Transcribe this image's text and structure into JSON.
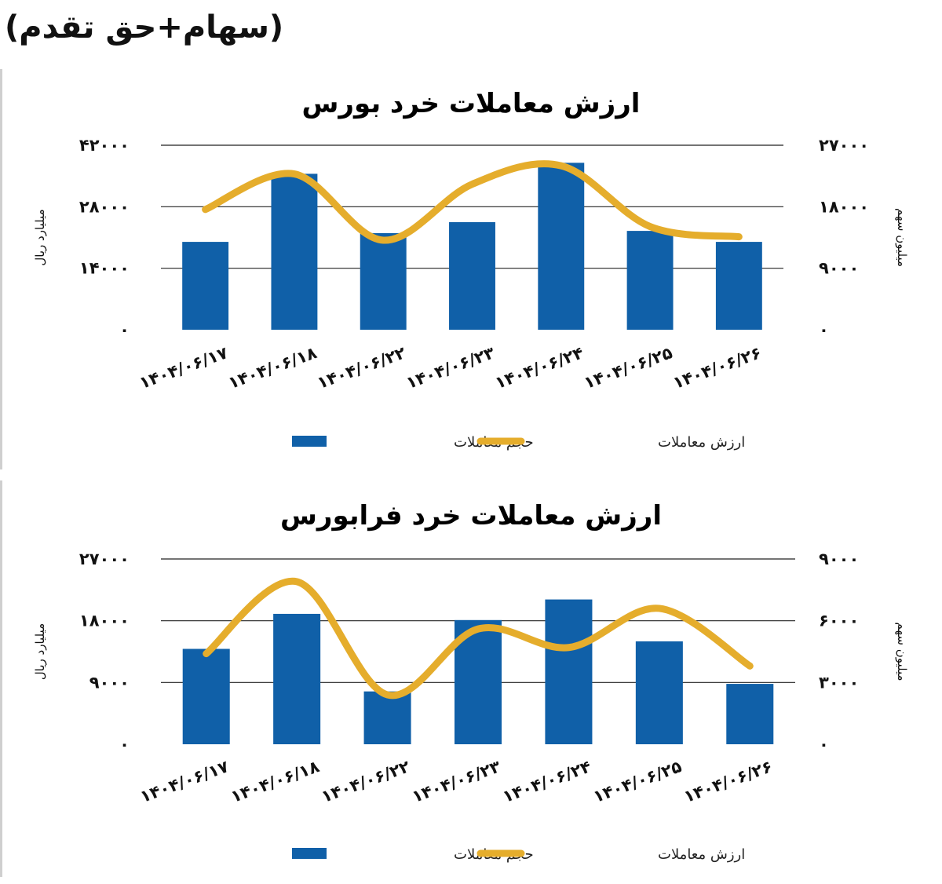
{
  "header": {
    "title": "(سهام+حق تقدم)"
  },
  "colors": {
    "bar": "#1060a8",
    "line": "#e5ad2c",
    "grid": "#222222"
  },
  "chart_data": [
    {
      "type": "bar",
      "title": "ارزش معاملات خرد بورس",
      "categories": [
        "۱۴۰۴/۰۶/۱۷",
        "۱۴۰۴/۰۶/۱۸",
        "۱۴۰۴/۰۶/۲۲",
        "۱۴۰۴/۰۶/۲۳",
        "۱۴۰۴/۰۶/۲۴",
        "۱۴۰۴/۰۶/۲۵",
        "۱۴۰۴/۰۶/۲۶"
      ],
      "left_axis": {
        "label": "میلیارد ریال",
        "ticks": [
          "۰",
          "۱۴۰۰۰",
          "۲۸۰۰۰",
          "۴۲۰۰۰"
        ],
        "ylim": [
          0,
          42000
        ]
      },
      "right_axis": {
        "label": "میلیون سهم",
        "ticks": [
          "۰",
          "۹۰۰۰",
          "۱۸۰۰۰",
          "۲۷۰۰۰"
        ],
        "ylim": [
          0,
          27000
        ]
      },
      "series": [
        {
          "name": "حجم معاملات",
          "kind": "bar",
          "axis": "left",
          "values": [
            20000,
            35500,
            22000,
            24500,
            38000,
            22500,
            20000
          ]
        },
        {
          "name": "ارزش معاملات",
          "kind": "line",
          "axis": "right",
          "values": [
            17600,
            22800,
            13100,
            21300,
            24000,
            15100,
            13600
          ]
        }
      ],
      "legend_position": "bottom",
      "grid": true
    },
    {
      "type": "bar",
      "title": "ارزش معاملات خرد فرابورس",
      "categories": [
        "۱۴۰۴/۰۶/۱۷",
        "۱۴۰۴/۰۶/۱۸",
        "۱۴۰۴/۰۶/۲۲",
        "۱۴۰۴/۰۶/۲۳",
        "۱۴۰۴/۰۶/۲۴",
        "۱۴۰۴/۰۶/۲۵",
        "۱۴۰۴/۰۶/۲۶"
      ],
      "left_axis": {
        "label": "میلیارد ریال",
        "ticks": [
          "۰",
          "۹۰۰۰",
          "۱۸۰۰۰",
          "۲۷۰۰۰"
        ],
        "ylim": [
          0,
          27000
        ]
      },
      "right_axis": {
        "label": "میلیون سهم",
        "ticks": [
          "۰",
          "۳۰۰۰",
          "۶۰۰۰",
          "۹۰۰۰"
        ],
        "ylim": [
          0,
          9000
        ]
      },
      "series": [
        {
          "name": "حجم معاملات",
          "kind": "bar",
          "axis": "left",
          "values": [
            13900,
            19000,
            7700,
            18100,
            21100,
            15000,
            8800
          ]
        },
        {
          "name": "ارزش معاملات",
          "kind": "line",
          "axis": "right",
          "values": [
            4400,
            7900,
            2400,
            5600,
            4700,
            6600,
            3800
          ]
        }
      ],
      "legend_position": "bottom",
      "grid": true
    }
  ]
}
